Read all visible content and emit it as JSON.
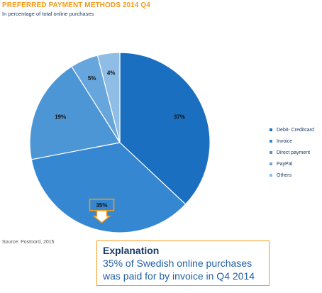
{
  "header": {
    "title": "PREFERRED PAYMENT METHODS 2014 Q4",
    "subtitle": "In percentage of total online purchases"
  },
  "source": "Source: Postnord, 2015",
  "explanation": {
    "title": "Explanation",
    "line1": "35% of Swedish online purchases",
    "line2": "was paid for by invoice in Q4 2014"
  },
  "colors": {
    "highlight": "#f29b1c"
  },
  "chart_data": {
    "type": "pie",
    "title": "PREFERRED PAYMENT METHODS 2014 Q4",
    "subtitle": "In percentage of total online purchases",
    "categories": [
      "Debit- Creditcard",
      "Invoice",
      "Direct payment",
      "PayPal",
      "Others"
    ],
    "values": [
      37,
      35,
      19,
      5,
      4
    ],
    "labels": [
      "37%",
      "35%",
      "19%",
      "5%",
      "4%"
    ],
    "colors": [
      "#1a6fc0",
      "#3587d1",
      "#4d96d6",
      "#66a6dd",
      "#8fbde6"
    ],
    "highlighted": "Invoice",
    "legend": "right"
  }
}
